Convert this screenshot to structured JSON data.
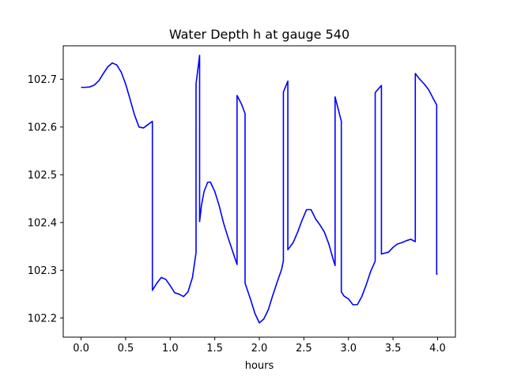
{
  "chart_data": {
    "type": "line",
    "title": "Water Depth h at gauge 540",
    "xlabel": "hours",
    "ylabel": "",
    "xlim": [
      -0.2,
      4.2
    ],
    "ylim": [
      102.16,
      102.77
    ],
    "xticks": [
      0.0,
      0.5,
      1.0,
      1.5,
      2.0,
      2.5,
      3.0,
      3.5,
      4.0
    ],
    "xtick_labels": [
      "0.0",
      "0.5",
      "1.0",
      "1.5",
      "2.0",
      "2.5",
      "3.0",
      "3.5",
      "4.0"
    ],
    "yticks": [
      102.2,
      102.3,
      102.4,
      102.5,
      102.6,
      102.7
    ],
    "ytick_labels": [
      "102.2",
      "102.3",
      "102.4",
      "102.5",
      "102.6",
      "102.7"
    ],
    "grid": false,
    "series": [
      {
        "color": "#0000ff",
        "x": [
          0.0,
          0.05,
          0.1,
          0.15,
          0.2,
          0.25,
          0.3,
          0.35,
          0.4,
          0.45,
          0.5,
          0.55,
          0.6,
          0.65,
          0.7,
          0.75,
          0.8,
          0.8,
          0.85,
          0.9,
          0.95,
          1.0,
          1.05,
          1.1,
          1.15,
          1.2,
          1.25,
          1.29,
          1.29,
          1.33,
          1.33,
          1.35,
          1.38,
          1.42,
          1.45,
          1.5,
          1.55,
          1.6,
          1.65,
          1.7,
          1.75,
          1.75,
          1.8,
          1.84,
          1.84,
          1.9,
          1.95,
          2.0,
          2.05,
          2.1,
          2.15,
          2.2,
          2.25,
          2.27,
          2.27,
          2.32,
          2.32,
          2.38,
          2.43,
          2.48,
          2.53,
          2.58,
          2.63,
          2.68,
          2.73,
          2.78,
          2.83,
          2.85,
          2.85,
          2.92,
          2.92,
          2.95,
          3.0,
          3.05,
          3.1,
          3.15,
          3.2,
          3.25,
          3.3,
          3.3,
          3.37,
          3.37,
          3.45,
          3.5,
          3.55,
          3.6,
          3.65,
          3.7,
          3.75,
          3.75,
          3.8,
          3.85,
          3.9,
          3.95,
          3.99,
          3.99,
          4.0
        ],
        "y": [
          102.683,
          102.683,
          102.684,
          102.688,
          102.697,
          102.712,
          102.726,
          102.734,
          102.73,
          102.715,
          102.69,
          102.658,
          102.625,
          102.6,
          102.598,
          102.605,
          102.612,
          102.258,
          102.273,
          102.285,
          102.281,
          102.268,
          102.253,
          102.25,
          102.245,
          102.255,
          102.285,
          102.337,
          102.69,
          102.75,
          102.402,
          102.435,
          102.465,
          102.484,
          102.485,
          102.465,
          102.435,
          102.398,
          102.368,
          102.34,
          102.312,
          102.666,
          102.648,
          102.628,
          102.273,
          102.24,
          102.21,
          102.19,
          102.198,
          102.217,
          102.247,
          102.275,
          102.302,
          102.32,
          102.673,
          102.696,
          102.343,
          102.358,
          102.38,
          102.405,
          102.427,
          102.427,
          102.408,
          102.395,
          102.38,
          102.355,
          102.322,
          102.31,
          102.663,
          102.612,
          102.255,
          102.246,
          102.24,
          102.228,
          102.228,
          102.245,
          102.27,
          102.298,
          102.319,
          102.672,
          102.687,
          102.334,
          102.338,
          102.348,
          102.355,
          102.358,
          102.362,
          102.365,
          102.36,
          102.712,
          102.7,
          102.69,
          102.678,
          102.66,
          102.646,
          102.292,
          102.292
        ]
      }
    ]
  }
}
